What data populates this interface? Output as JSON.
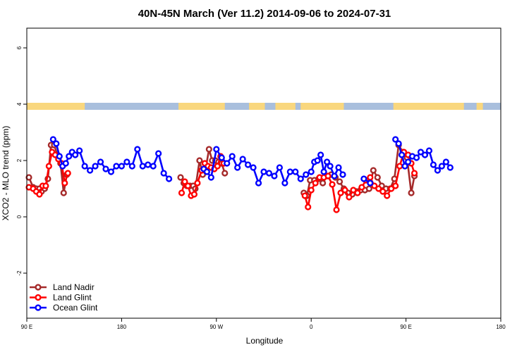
{
  "chart_data": {
    "type": "line",
    "title": "40N-45N March (Ver 11.2)   2014-09-06 to 2024-07-31",
    "xlabel": "Longitude",
    "ylabel": "XCO2 - MLO trend (ppm)",
    "xlim": [
      90,
      540
    ],
    "ylim": [
      -3.6,
      6.7
    ],
    "x_ticks": [
      {
        "value": 90,
        "label": "90 E"
      },
      {
        "value": 180,
        "label": "180"
      },
      {
        "value": 270,
        "label": "90 W"
      },
      {
        "value": 360,
        "label": "0"
      },
      {
        "value": 450,
        "label": "90 E"
      },
      {
        "value": 540,
        "label": "180"
      }
    ],
    "y_ticks": [
      {
        "value": -2,
        "label": "-2"
      },
      {
        "value": 0,
        "label": "0"
      },
      {
        "value": 2,
        "label": "2"
      },
      {
        "value": 4,
        "label": "4"
      },
      {
        "value": 6,
        "label": "6"
      }
    ],
    "legend_position": "bottom-left",
    "land_ocean_band": {
      "y_range": [
        3.8,
        4.05
      ],
      "land_color": "#f9d77e",
      "ocean_color": "#a9bfdd",
      "land_segments": [
        [
          90,
          145
        ],
        [
          234,
          278
        ],
        [
          301,
          316
        ],
        [
          326,
          345
        ],
        [
          350,
          391
        ],
        [
          438,
          505
        ],
        [
          517,
          523
        ]
      ]
    },
    "series": [
      {
        "name": "Land Nadir",
        "color": "#a52a2a",
        "segments": [
          [
            [
              92,
              1.4
            ],
            [
              96,
              1.05
            ],
            [
              99,
              1.0
            ],
            [
              102,
              1.0
            ],
            [
              104,
              0.9
            ],
            [
              107,
              1.0
            ],
            [
              110,
              1.35
            ],
            [
              113,
              2.55
            ],
            [
              116,
              2.55
            ],
            [
              119,
              2.2
            ],
            [
              122,
              1.9
            ],
            [
              125,
              0.85
            ],
            [
              128,
              1.5
            ]
          ],
          [
            [
              236,
              1.4
            ],
            [
              239,
              1.2
            ],
            [
              242,
              1.1
            ],
            [
              245,
              1.1
            ],
            [
              248,
              1.1
            ],
            [
              250,
              1.0
            ],
            [
              254,
              2.0
            ],
            [
              257,
              1.5
            ],
            [
              260,
              1.75
            ],
            [
              263,
              2.4
            ],
            [
              266,
              2.0
            ],
            [
              269,
              2.0
            ],
            [
              272,
              1.95
            ],
            [
              275,
              1.9
            ],
            [
              278,
              1.55
            ]
          ],
          [
            [
              353,
              0.85
            ],
            [
              356,
              0.75
            ],
            [
              359,
              1.3
            ],
            [
              363,
              1.3
            ],
            [
              367,
              1.35
            ],
            [
              371,
              1.2
            ],
            [
              375,
              1.45
            ],
            [
              379,
              1.5
            ],
            [
              383,
              1.4
            ],
            [
              387,
              1.25
            ],
            [
              391,
              1.0
            ],
            [
              395,
              0.85
            ],
            [
              399,
              0.8
            ],
            [
              403,
              0.9
            ],
            [
              407,
              0.95
            ],
            [
              411,
              0.95
            ],
            [
              415,
              1.0
            ],
            [
              419,
              1.65
            ],
            [
              423,
              1.4
            ],
            [
              427,
              1.1
            ],
            [
              431,
              1.0
            ],
            [
              435,
              1.0
            ],
            [
              439,
              1.35
            ],
            [
              443,
              2.55
            ],
            [
              447,
              2.3
            ],
            [
              451,
              2.1
            ],
            [
              455,
              0.85
            ],
            [
              458,
              1.45
            ]
          ]
        ]
      },
      {
        "name": "Land Glint",
        "color": "#ff0000",
        "segments": [
          [
            [
              92,
              1.05
            ],
            [
              96,
              1.0
            ],
            [
              99,
              0.9
            ],
            [
              102,
              0.8
            ],
            [
              105,
              1.1
            ],
            [
              108,
              1.1
            ],
            [
              111,
              1.8
            ],
            [
              114,
              2.3
            ],
            [
              117,
              2.2
            ],
            [
              120,
              2.05
            ],
            [
              123,
              1.9
            ],
            [
              126,
              1.2
            ],
            [
              129,
              1.55
            ]
          ],
          [
            [
              237,
              0.85
            ],
            [
              240,
              1.25
            ],
            [
              243,
              1.1
            ],
            [
              246,
              0.75
            ],
            [
              249,
              0.8
            ],
            [
              252,
              1.2
            ],
            [
              256,
              1.65
            ],
            [
              259,
              1.9
            ],
            [
              262,
              1.8
            ],
            [
              265,
              1.75
            ],
            [
              268,
              1.7
            ],
            [
              271,
              1.8
            ],
            [
              274,
              2.15
            ],
            [
              277,
              1.9
            ]
          ],
          [
            [
              354,
              0.75
            ],
            [
              357,
              0.35
            ],
            [
              360,
              0.95
            ],
            [
              364,
              1.2
            ],
            [
              368,
              1.4
            ],
            [
              372,
              1.4
            ],
            [
              376,
              1.45
            ],
            [
              380,
              1.15
            ],
            [
              384,
              0.25
            ],
            [
              388,
              0.85
            ],
            [
              392,
              0.95
            ],
            [
              396,
              0.7
            ],
            [
              400,
              0.95
            ],
            [
              404,
              0.85
            ],
            [
              408,
              1.05
            ],
            [
              412,
              1.3
            ],
            [
              416,
              1.4
            ],
            [
              420,
              1.1
            ],
            [
              424,
              1.0
            ],
            [
              428,
              0.9
            ],
            [
              432,
              0.75
            ],
            [
              436,
              1.0
            ],
            [
              440,
              1.1
            ],
            [
              444,
              1.8
            ],
            [
              448,
              2.3
            ],
            [
              452,
              2.2
            ],
            [
              455,
              1.9
            ],
            [
              458,
              1.55
            ]
          ]
        ]
      },
      {
        "name": "Ocean Glint",
        "color": "#0000ff",
        "segments": [
          [
            [
              115,
              2.75
            ],
            [
              118,
              2.6
            ],
            [
              121,
              2.15
            ],
            [
              124,
              1.8
            ],
            [
              127,
              1.9
            ],
            [
              130,
              2.15
            ],
            [
              133,
              2.3
            ],
            [
              136,
              2.2
            ],
            [
              140,
              2.35
            ],
            [
              145,
              1.8
            ],
            [
              150,
              1.65
            ],
            [
              155,
              1.8
            ],
            [
              160,
              1.95
            ],
            [
              165,
              1.7
            ],
            [
              170,
              1.6
            ],
            [
              175,
              1.8
            ],
            [
              180,
              1.8
            ],
            [
              185,
              1.95
            ],
            [
              190,
              1.8
            ],
            [
              195,
              2.4
            ],
            [
              200,
              1.8
            ],
            [
              205,
              1.85
            ],
            [
              210,
              1.8
            ],
            [
              215,
              2.25
            ],
            [
              220,
              1.55
            ],
            [
              225,
              1.35
            ]
          ],
          [
            [
              258,
              1.7
            ],
            [
              261,
              1.6
            ],
            [
              265,
              1.4
            ],
            [
              270,
              2.4
            ],
            [
              275,
              2.1
            ],
            [
              280,
              1.9
            ],
            [
              285,
              2.15
            ],
            [
              290,
              1.75
            ],
            [
              295,
              2.05
            ],
            [
              300,
              1.85
            ],
            [
              305,
              1.75
            ],
            [
              310,
              1.2
            ],
            [
              315,
              1.6
            ],
            [
              320,
              1.55
            ],
            [
              325,
              1.45
            ],
            [
              330,
              1.75
            ],
            [
              335,
              1.2
            ],
            [
              340,
              1.6
            ],
            [
              345,
              1.6
            ],
            [
              350,
              1.35
            ],
            [
              355,
              1.5
            ],
            [
              360,
              1.6
            ],
            [
              363,
              1.95
            ],
            [
              366,
              2.0
            ],
            [
              369,
              2.2
            ],
            [
              372,
              1.6
            ],
            [
              375,
              1.95
            ],
            [
              378,
              1.8
            ],
            [
              382,
              1.45
            ],
            [
              386,
              1.75
            ],
            [
              390,
              1.5
            ]
          ],
          [
            [
              410,
              1.35
            ],
            [
              416,
              1.2
            ]
          ],
          [
            [
              440,
              2.75
            ],
            [
              443,
              2.6
            ],
            [
              446,
              2.2
            ],
            [
              449,
              1.8
            ],
            [
              452,
              1.95
            ],
            [
              456,
              2.15
            ],
            [
              460,
              2.1
            ],
            [
              464,
              2.3
            ],
            [
              468,
              2.2
            ],
            [
              472,
              2.35
            ],
            [
              476,
              1.85
            ],
            [
              480,
              1.65
            ],
            [
              484,
              1.8
            ],
            [
              488,
              1.95
            ],
            [
              492,
              1.75
            ]
          ]
        ]
      }
    ]
  }
}
